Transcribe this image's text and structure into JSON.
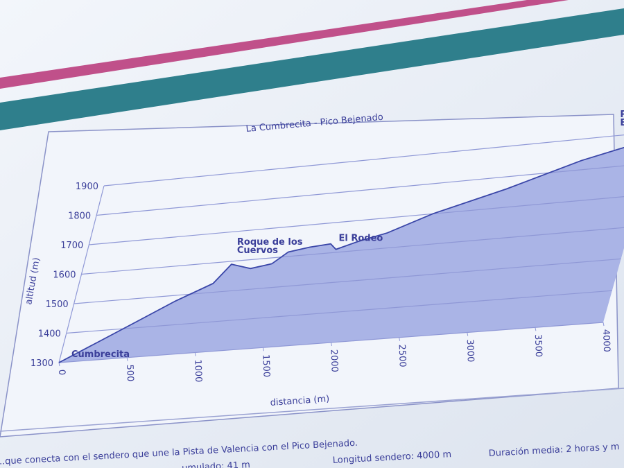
{
  "chart_data": {
    "type": "area",
    "title": "La Cumbrecita - Pico Bejenado",
    "x_label": "distancia (m)",
    "y_label": "altitud (m)",
    "x": [
      0,
      250,
      500,
      750,
      1000,
      1100,
      1250,
      1400,
      1500,
      1650,
      1800,
      1850,
      2000,
      2200,
      2500,
      3000,
      3500,
      4000
    ],
    "series": [
      {
        "name": "altitud",
        "color": "#3a46a8",
        "values": [
          1300,
          1360,
          1420,
          1480,
          1530,
          1590,
          1570,
          1580,
          1615,
          1625,
          1630,
          1610,
          1630,
          1650,
          1700,
          1760,
          1830,
          1880
        ]
      }
    ],
    "xlim": [
      0,
      4000
    ],
    "ylim": [
      1300,
      1900
    ],
    "xticks": [
      0,
      500,
      1000,
      1500,
      2000,
      2500,
      3000,
      3500,
      4000
    ],
    "yticks": [
      1300,
      1400,
      1500,
      1600,
      1700,
      1800,
      1900
    ],
    "grid": true,
    "annotations": [
      {
        "lines": [
          "Cumbrecita"
        ]
      },
      {
        "lines": [
          "Roque de los",
          "Cuervos"
        ]
      },
      {
        "lines": [
          "El Rodeo"
        ]
      },
      {
        "lines": [
          "Pico",
          "Bejenado"
        ]
      }
    ]
  },
  "footer": [
    "...que conecta con el sendero que une la Pista de Valencia con el Pico Bejenado.",
    "...umulado: 41 m",
    "Longitud sendero: 4000 m",
    "Duración media: 2 horas y m"
  ]
}
